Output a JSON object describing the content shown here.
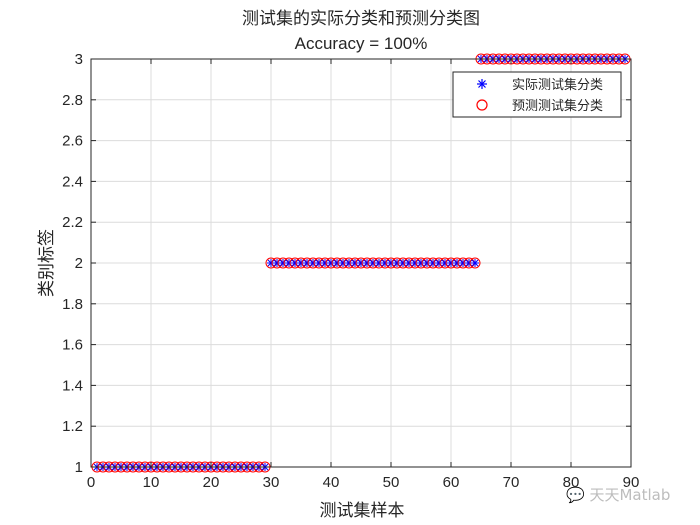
{
  "chart_data": {
    "type": "scatter",
    "title": "测试集的实际分类和预测分类图",
    "subtitle": "Accuracy = 100%",
    "xlabel": "测试集样本",
    "ylabel": "类别标签",
    "xlim": [
      0,
      90
    ],
    "ylim": [
      1,
      3
    ],
    "xticks": [
      0,
      10,
      20,
      30,
      40,
      50,
      60,
      70,
      80,
      90
    ],
    "yticks": [
      1,
      1.2,
      1.4,
      1.6,
      1.8,
      2,
      2.2,
      2.4,
      2.6,
      2.8,
      3
    ],
    "grid": true,
    "legend_position": "top-right",
    "segments": [
      {
        "class": 1,
        "from": 1,
        "to": 29
      },
      {
        "class": 2,
        "from": 30,
        "to": 64
      },
      {
        "class": 3,
        "from": 65,
        "to": 89
      }
    ],
    "series": [
      {
        "name": "实际测试集分类",
        "marker": "*",
        "color": "#0000ff",
        "x": "1..89",
        "values_rule": "1 for 1-29, 2 for 30-64, 3 for 65-89"
      },
      {
        "name": "预测测试集分类",
        "marker": "o",
        "color": "#ff0000",
        "x": "1..89",
        "values_rule": "1 for 1-29, 2 for 30-64, 3 for 65-89"
      }
    ]
  },
  "labels": {
    "title": "测试集的实际分类和预测分类图",
    "accuracy": "Accuracy = 100%",
    "xlabel": "测试集样本",
    "ylabel": "类别标签",
    "legend_actual": "实际测试集分类",
    "legend_pred": "预测测试集分类",
    "watermark": "天天Matlab"
  },
  "colors": {
    "actual": "#0000ff",
    "predicted": "#ff0000",
    "grid": "#dcdcdc",
    "axis": "#262626"
  }
}
